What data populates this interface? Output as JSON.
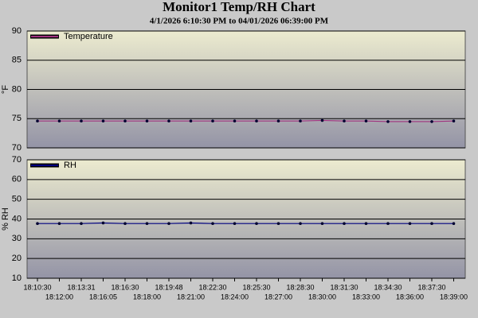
{
  "title": "Monitor1 Temp/RH Chart",
  "subtitle": "4/1/2026 6:10:30 PM to 04/01/2026 06:39:00 PM",
  "chart_data": [
    {
      "type": "line",
      "y_label": "°F",
      "ylim": [
        70,
        90
      ],
      "yticks": [
        70,
        75,
        80,
        85,
        90
      ],
      "grid": true,
      "series": [
        {
          "name": "Temperature",
          "color": "#a0307e",
          "values": [
            74.6,
            74.6,
            74.6,
            74.6,
            74.6,
            74.6,
            74.6,
            74.6,
            74.6,
            74.6,
            74.6,
            74.6,
            74.6,
            74.7,
            74.6,
            74.6,
            74.5,
            74.5,
            74.5,
            74.6
          ]
        }
      ]
    },
    {
      "type": "line",
      "y_label": "% RH",
      "ylim": [
        10,
        70
      ],
      "yticks": [
        10,
        20,
        30,
        40,
        50,
        60,
        70
      ],
      "grid": true,
      "categories": [
        "18:10:30",
        "18:12:00",
        "18:13:31",
        "18:16:05",
        "18:16:30",
        "18:18:00",
        "18:19:48",
        "18:21:00",
        "18:22:30",
        "18:24:00",
        "18:25:30",
        "18:27:00",
        "18:28:30",
        "18:30:00",
        "18:31:30",
        "18:33:00",
        "18:34:30",
        "18:36:00",
        "18:37:30",
        "18:39:00"
      ],
      "series": [
        {
          "name": "RH",
          "color": "#000080",
          "values": [
            37.7,
            37.7,
            37.7,
            38.0,
            37.7,
            37.7,
            37.7,
            38.0,
            37.7,
            37.7,
            37.7,
            37.7,
            37.7,
            37.7,
            37.7,
            37.7,
            37.7,
            37.7,
            37.7,
            37.7
          ]
        }
      ]
    }
  ]
}
